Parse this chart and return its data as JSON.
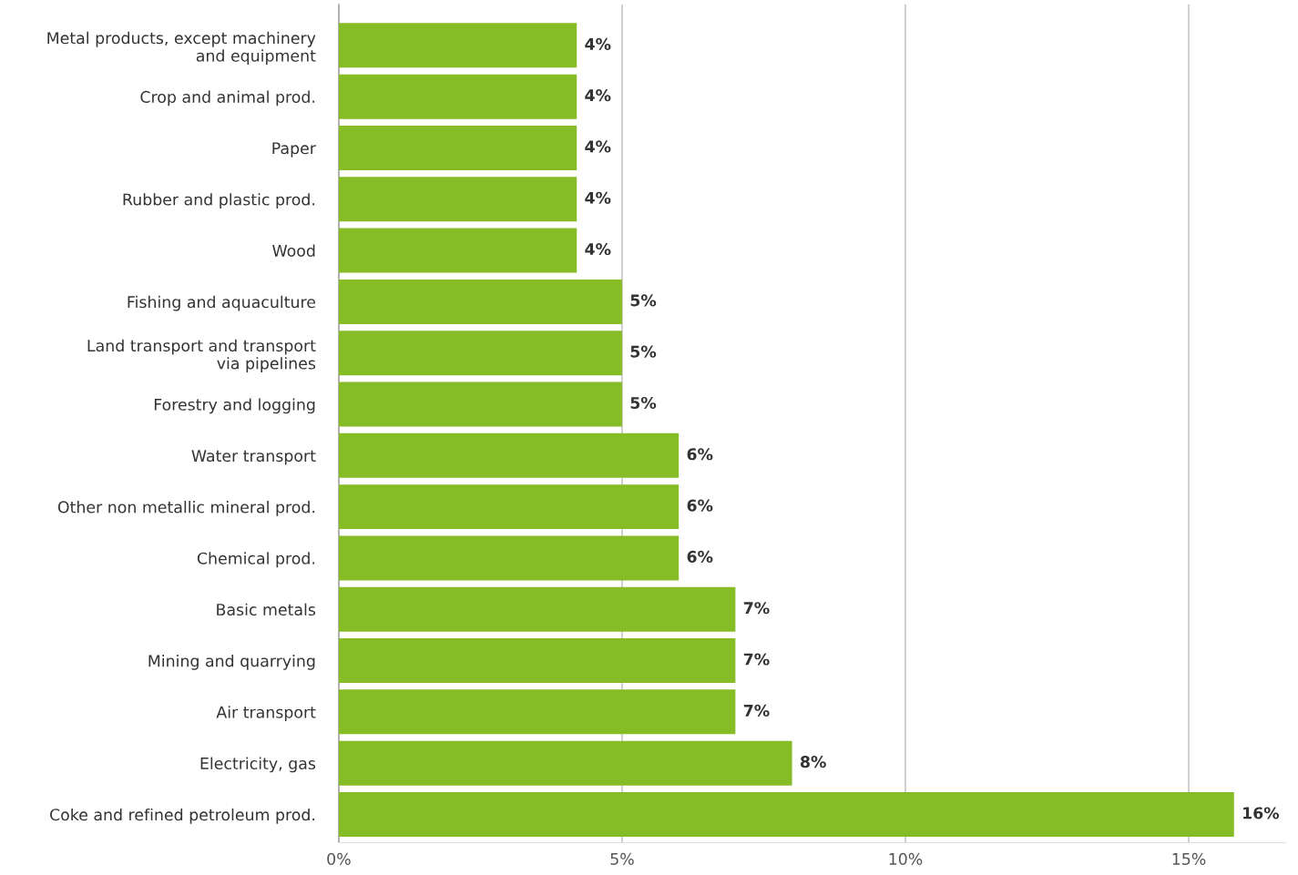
{
  "chart_data": {
    "type": "bar",
    "orientation": "horizontal",
    "categories": [
      "Metal products, except machinery\nand equipment",
      "Crop and animal prod.",
      "Paper",
      "Rubber and plastic prod.",
      "Wood",
      "Fishing and aquaculture",
      "Land transport and transport\nvia pipelines",
      "Forestry and logging",
      "Water transport",
      "Other non metallic mineral prod.",
      "Chemical prod.",
      "Basic metals",
      "Mining and quarrying",
      "Air transport",
      "Electricity, gas",
      "Coke and refined petroleum prod."
    ],
    "values": [
      4.2,
      4.2,
      4.2,
      4.2,
      4.2,
      5.0,
      5.0,
      5.0,
      6.0,
      6.0,
      6.0,
      7.0,
      7.0,
      7.0,
      8.0,
      15.8
    ],
    "value_labels": [
      "4%",
      "4%",
      "4%",
      "4%",
      "4%",
      "5%",
      "5%",
      "5%",
      "6%",
      "6%",
      "6%",
      "7%",
      "7%",
      "7%",
      "8%",
      "16%"
    ],
    "color": "#86bc25",
    "xlim": [
      0,
      16.7
    ],
    "xticks": [
      {
        "value": 0,
        "label": "0%"
      },
      {
        "value": 5,
        "label": "5%"
      },
      {
        "value": 10,
        "label": "10%"
      },
      {
        "value": 15,
        "label": "15%"
      }
    ],
    "grid": "x",
    "legend": false
  }
}
